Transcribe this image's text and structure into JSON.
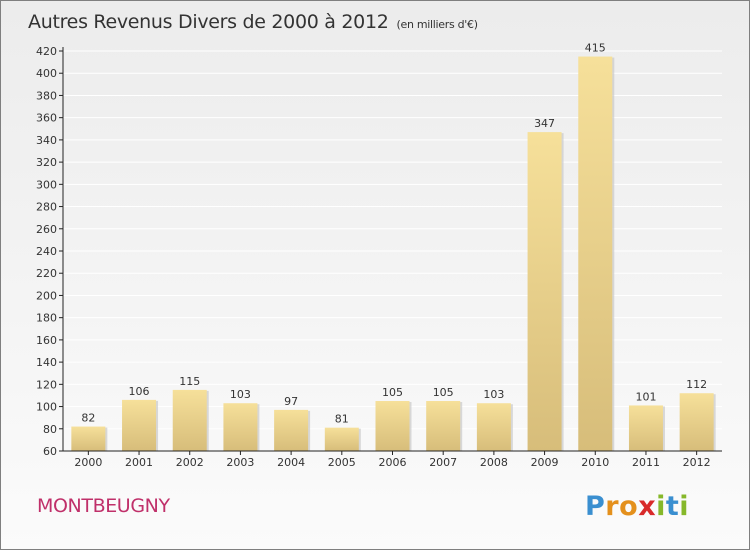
{
  "header": {
    "title": "Autres Revenus Divers de 2000 à 2012",
    "unit": "(en milliers d'€)"
  },
  "footer": {
    "commune": "MONTBEUGNY",
    "logo_text": "Proxiti",
    "logo_letters": [
      {
        "ch": "P",
        "color": "#3a8fd0"
      },
      {
        "ch": "r",
        "color": "#e4901c"
      },
      {
        "ch": "o",
        "color": "#e4901c"
      },
      {
        "ch": "x",
        "color": "#d82a2a"
      },
      {
        "ch": "i",
        "color": "#86b82a"
      },
      {
        "ch": "t",
        "color": "#3a8fd0"
      },
      {
        "ch": "i",
        "color": "#86b82a"
      }
    ]
  },
  "colors": {
    "bar_light": "#f6e09a",
    "bar_dark": "#d7bd7a",
    "axis": "#222222",
    "grid": "#ffffff",
    "commune": "#c0306a"
  },
  "chart_data": {
    "type": "bar",
    "title": "Autres Revenus Divers de 2000 à 2012",
    "subtitle": "(en milliers d'€)",
    "categories": [
      "2000",
      "2001",
      "2002",
      "2003",
      "2004",
      "2005",
      "2006",
      "2007",
      "2008",
      "2009",
      "2010",
      "2011",
      "2012"
    ],
    "values": [
      82,
      106,
      115,
      103,
      97,
      81,
      105,
      105,
      103,
      347,
      415,
      101,
      112
    ],
    "ylim": [
      60,
      420
    ],
    "yticks": [
      60,
      80,
      100,
      120,
      140,
      160,
      180,
      200,
      220,
      240,
      260,
      280,
      300,
      320,
      340,
      360,
      380,
      400,
      420
    ],
    "grid": true,
    "data_labels": true
  }
}
